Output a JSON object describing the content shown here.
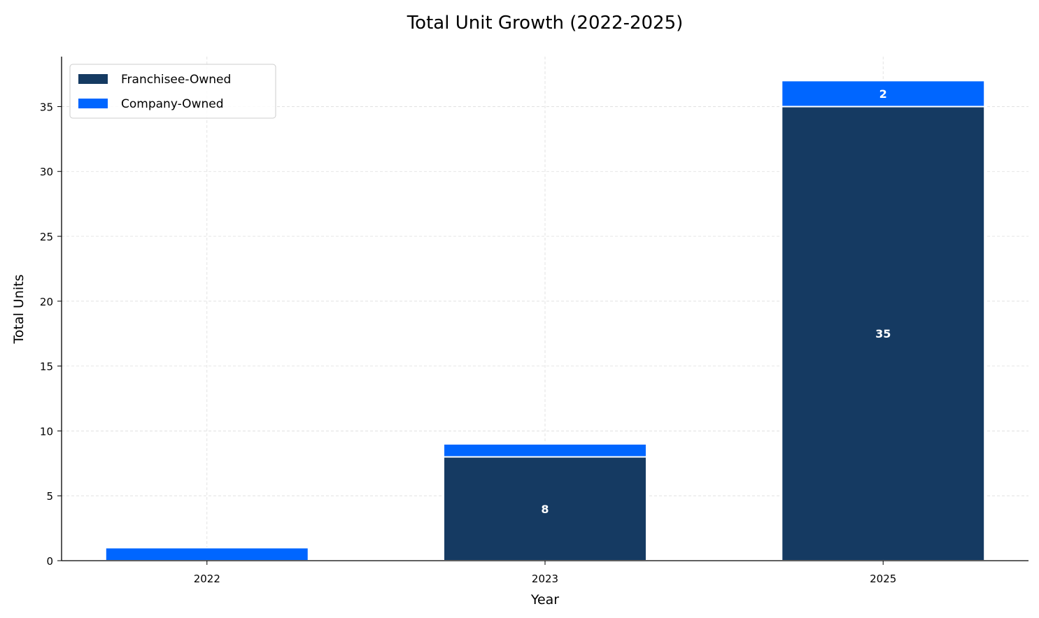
{
  "chart_data": {
    "type": "bar",
    "stacked": true,
    "title": "Total Unit Growth (2022-2025)",
    "xlabel": "Year",
    "ylabel": "Total Units",
    "categories": [
      "2022",
      "2023",
      "2025"
    ],
    "series": [
      {
        "name": "Franchisee-Owned",
        "values": [
          0,
          8,
          35
        ],
        "color": "#153a62",
        "labels": [
          "",
          "8",
          "35"
        ]
      },
      {
        "name": "Company-Owned",
        "values": [
          1,
          1,
          2
        ],
        "color": "#0066ff",
        "labels": [
          "",
          "",
          "2"
        ]
      }
    ],
    "ylim": [
      0,
      38.85
    ],
    "yticks": [
      0,
      5,
      10,
      15,
      20,
      25,
      30,
      35
    ],
    "grid": true,
    "legend_position": "top-left"
  }
}
